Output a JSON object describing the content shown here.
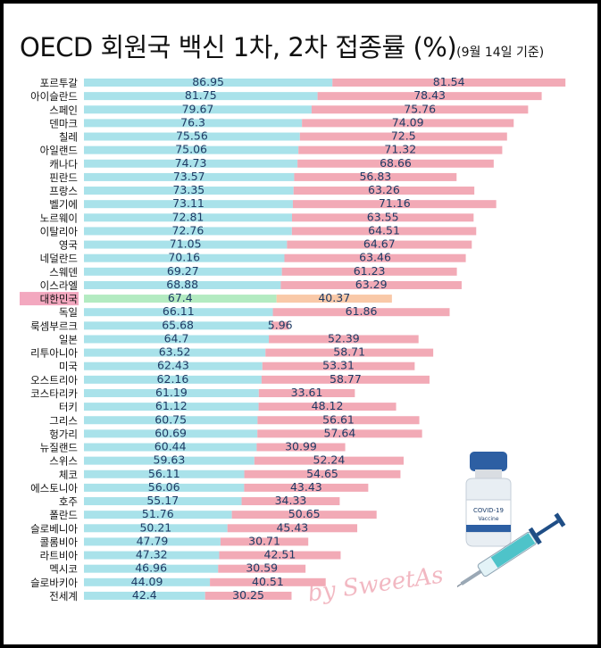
{
  "header": {
    "title": "OECD 회원국 백신 1차, 2차 접종률 (%)",
    "subtitle": "(9월 14일 기준)"
  },
  "watermark": "by SweetAs",
  "vaccine_label": {
    "line1": "COVID-19",
    "line2": "Vaccine"
  },
  "colors": {
    "dose1": "#a9e2ea",
    "dose2": "#f2aab6",
    "highlight_dose1": "#b3ebc1",
    "highlight_dose2": "#f9c9a8",
    "highlight_label_bg": "#f3a8bf"
  },
  "chart_data": {
    "type": "bar",
    "orientation": "horizontal",
    "stacked": true,
    "title": "OECD 회원국 백신 1차, 2차 접종률 (%)",
    "subtitle": "(9월 14일 기준)",
    "highlight_category": "대한민국",
    "legend": "none",
    "grid": false,
    "categories": [
      "포르투갈",
      "아이슬란드",
      "스페인",
      "덴마크",
      "칠레",
      "아일랜드",
      "캐나다",
      "핀란드",
      "프랑스",
      "벨기에",
      "노르웨이",
      "이탈리아",
      "영국",
      "네덜란드",
      "스웨덴",
      "이스라엘",
      "대한민국",
      "독일",
      "룩셈부르크",
      "일본",
      "리투아니아",
      "미국",
      "오스트리아",
      "코스타리카",
      "터키",
      "그리스",
      "헝가리",
      "뉴질랜드",
      "스위스",
      "체코",
      "에스토니아",
      "호주",
      "폴란드",
      "슬로베니아",
      "콜롬비아",
      "라트비아",
      "멕시코",
      "슬로바키아",
      "전세계"
    ],
    "series": [
      {
        "values": [
          86.95,
          81.75,
          79.67,
          76.3,
          75.56,
          75.06,
          74.73,
          73.57,
          73.35,
          73.11,
          72.81,
          72.76,
          71.05,
          70.16,
          69.27,
          68.88,
          67.4,
          66.11,
          65.68,
          64.7,
          63.52,
          62.43,
          62.16,
          61.19,
          61.12,
          60.75,
          60.69,
          60.44,
          59.63,
          56.11,
          56.06,
          55.17,
          51.76,
          50.21,
          47.79,
          47.32,
          46.96,
          44.09,
          42.4
        ]
      },
      {
        "values": [
          81.54,
          78.43,
          75.76,
          74.09,
          72.5,
          71.32,
          68.66,
          56.83,
          63.26,
          71.16,
          63.55,
          64.51,
          64.67,
          63.46,
          61.23,
          63.29,
          40.37,
          61.86,
          5.96,
          52.39,
          58.71,
          53.31,
          58.77,
          33.61,
          48.12,
          56.61,
          57.64,
          30.99,
          52.24,
          54.65,
          43.43,
          34.33,
          50.65,
          45.43,
          30.71,
          42.51,
          30.59,
          40.51,
          30.25
        ]
      }
    ],
    "labels": {
      "dose1": [
        "86.95",
        "81.75",
        "79.67",
        "76.3",
        "75.56",
        "75.06",
        "74.73",
        "73.57",
        "73.35",
        "73.11",
        "72.81",
        "72.76",
        "71.05",
        "70.16",
        "69.27",
        "68.88",
        "67.4",
        "66.11",
        "65.68",
        "64.7",
        "63.52",
        "62.43",
        "62.16",
        "61.19",
        "61.12",
        "60.75",
        "60.69",
        "60.44",
        "59.63",
        "56.11",
        "56.06",
        "55.17",
        "51.76",
        "50.21",
        "47.79",
        "47.32",
        "46.96",
        "44.09",
        "42.4"
      ],
      "dose2": [
        "81.54",
        "78.43",
        "75.76",
        "74.09",
        "72.5",
        "71.32",
        "68.66",
        "56.83",
        "63.26",
        "71.16",
        "63.55",
        "64.51",
        "64.67",
        "63.46",
        "61.23",
        "63.29",
        "40.37",
        "61.86",
        "5.96",
        "52.39",
        "58.71",
        "53.31",
        "58.77",
        "33.61",
        "48.12",
        "56.61",
        "57.64",
        "30.99",
        "52.24",
        "54.65",
        "43.43",
        "34.33",
        "50.65",
        "45.43",
        "30.71",
        "42.51",
        "30.59",
        "40.51",
        "30.25"
      ]
    }
  }
}
